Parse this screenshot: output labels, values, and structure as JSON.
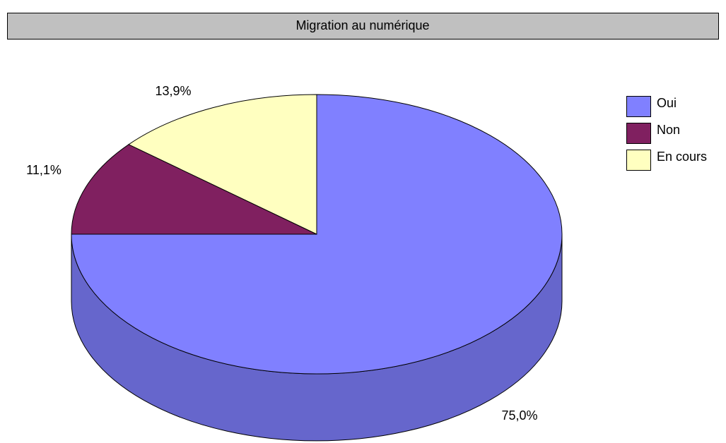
{
  "chart_data": {
    "type": "pie",
    "title": "Migration au numérique",
    "categories": [
      "Oui",
      "Non",
      "En cours"
    ],
    "values": [
      75.0,
      11.1,
      13.9
    ],
    "value_labels": [
      "75,0%",
      "11,1%",
      "13,9%"
    ],
    "colors": [
      "#8080ff",
      "#802060",
      "#ffffc0"
    ],
    "legend": "right"
  }
}
